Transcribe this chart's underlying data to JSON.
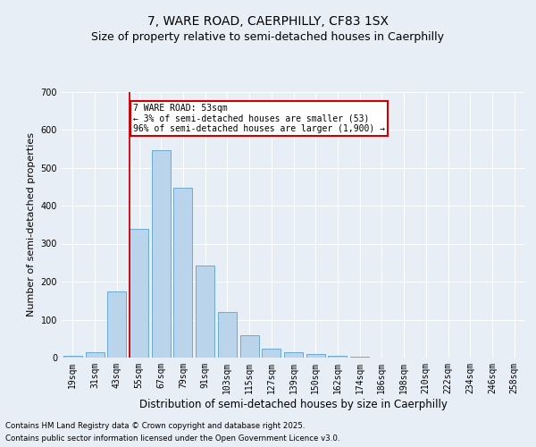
{
  "title": "7, WARE ROAD, CAERPHILLY, CF83 1SX",
  "subtitle": "Size of property relative to semi-detached houses in Caerphilly",
  "xlabel": "Distribution of semi-detached houses by size in Caerphilly",
  "ylabel": "Number of semi-detached properties",
  "categories": [
    "19sqm",
    "31sqm",
    "43sqm",
    "55sqm",
    "67sqm",
    "79sqm",
    "91sqm",
    "103sqm",
    "115sqm",
    "127sqm",
    "139sqm",
    "150sqm",
    "162sqm",
    "174sqm",
    "186sqm",
    "198sqm",
    "210sqm",
    "222sqm",
    "234sqm",
    "246sqm",
    "258sqm"
  ],
  "values": [
    5,
    13,
    175,
    340,
    545,
    448,
    242,
    121,
    60,
    24,
    13,
    10,
    5,
    2,
    0,
    0,
    0,
    0,
    0,
    0,
    0
  ],
  "bar_color": "#bad4eb",
  "bar_edge_color": "#6aaad4",
  "vline_color": "#cc0000",
  "annotation_title": "7 WARE ROAD: 53sqm",
  "annotation_line1": "← 3% of semi-detached houses are smaller (53)",
  "annotation_line2": "96% of semi-detached houses are larger (1,900) →",
  "annotation_box_color": "#ffffff",
  "annotation_box_edge": "#cc0000",
  "ylim": [
    0,
    700
  ],
  "yticks": [
    0,
    100,
    200,
    300,
    400,
    500,
    600,
    700
  ],
  "bg_color": "#e8eef5",
  "plot_bg_color": "#e8eef5",
  "footer_line1": "Contains HM Land Registry data © Crown copyright and database right 2025.",
  "footer_line2": "Contains public sector information licensed under the Open Government Licence v3.0.",
  "title_fontsize": 10,
  "subtitle_fontsize": 9,
  "tick_fontsize": 7,
  "ylabel_fontsize": 8,
  "xlabel_fontsize": 8.5
}
